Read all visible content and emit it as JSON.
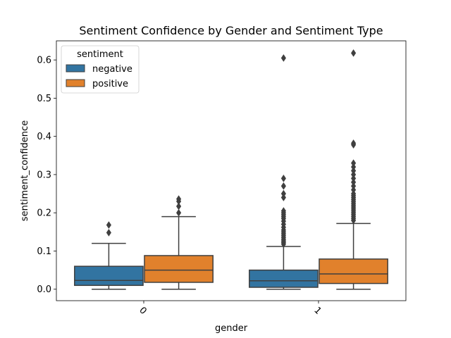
{
  "chart_data": {
    "type": "box",
    "title": "Sentiment Confidence by Gender and Sentiment Type",
    "xlabel": "gender",
    "ylabel": "sentiment_confidence",
    "categories": [
      "0",
      "1"
    ],
    "ylim": [
      -0.03,
      0.65
    ],
    "yticks": [
      0.0,
      0.1,
      0.2,
      0.3,
      0.4,
      0.5,
      0.6
    ],
    "ytick_labels": [
      "0.0",
      "0.1",
      "0.2",
      "0.3",
      "0.4",
      "0.5",
      "0.6"
    ],
    "legend": {
      "title": "sentiment",
      "placement": "top-left"
    },
    "series": [
      {
        "name": "negative",
        "color": "#3274a1",
        "boxes": [
          {
            "category": "0",
            "whisker_low": 0.0,
            "q1": 0.01,
            "median": 0.023,
            "q3": 0.06,
            "whisker_high": 0.12,
            "outliers": [
              0.148,
              0.168
            ]
          },
          {
            "category": "1",
            "whisker_low": 0.0,
            "q1": 0.005,
            "median": 0.022,
            "q3": 0.05,
            "whisker_high": 0.112,
            "outliers": [
              0.118,
              0.122,
              0.126,
              0.13,
              0.135,
              0.14,
              0.145,
              0.15,
              0.155,
              0.162,
              0.17,
              0.178,
              0.185,
              0.19,
              0.195,
              0.2,
              0.205,
              0.24,
              0.25,
              0.27,
              0.29,
              0.605
            ]
          }
        ]
      },
      {
        "name": "positive",
        "color": "#e1812c",
        "boxes": [
          {
            "category": "0",
            "whisker_low": 0.0,
            "q1": 0.018,
            "median": 0.05,
            "q3": 0.088,
            "whisker_high": 0.19,
            "outliers": [
              0.2,
              0.217,
              0.23,
              0.236
            ]
          },
          {
            "category": "1",
            "whisker_low": 0.0,
            "q1": 0.015,
            "median": 0.04,
            "q3": 0.079,
            "whisker_high": 0.172,
            "outliers": [
              0.18,
              0.185,
              0.19,
              0.195,
              0.2,
              0.205,
              0.21,
              0.215,
              0.22,
              0.225,
              0.23,
              0.235,
              0.24,
              0.245,
              0.25,
              0.26,
              0.27,
              0.28,
              0.29,
              0.3,
              0.31,
              0.32,
              0.33,
              0.378,
              0.382,
              0.618
            ]
          }
        ]
      }
    ]
  }
}
